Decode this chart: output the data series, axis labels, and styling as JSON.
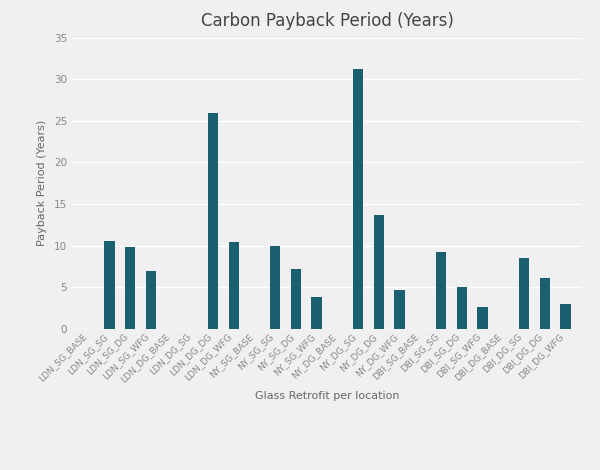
{
  "title": "Carbon Payback Period (Years)",
  "xlabel": "Glass Retrofit per location",
  "ylabel": "Payback Period (Years)",
  "bar_color": "#1b6070",
  "background_color": "#f0f0f0",
  "plot_bg_color": "#f0f0f0",
  "ylim": [
    0,
    35
  ],
  "yticks": [
    0,
    5,
    10,
    15,
    20,
    25,
    30,
    35
  ],
  "categories": [
    "LDN_SG_BASE",
    "LDN_SG_SG",
    "LDN_SG_DG",
    "LDN_SG_WFG",
    "LDN_DG_BASE",
    "LDN_DG_SG",
    "LDN_DG_DG",
    "LDN_DG_WFG",
    "NY_SG_BASE",
    "NY_SG_SG",
    "NY_SG_DG",
    "NY_SG_WFG",
    "NY_DG_BASE",
    "NY_DG_SG",
    "NY_DG_DG",
    "NY_DG_WFG",
    "DBI_SG_BASE",
    "DBI_SG_SG",
    "DBI_SG_DG",
    "DBI_SG_WFG",
    "DBI_DG_BASE",
    "DBI_DG_SG",
    "DBI_DG_DG",
    "DBI_DG_WFG"
  ],
  "values": [
    0,
    10.6,
    9.8,
    7.0,
    0,
    0,
    26.0,
    10.5,
    0,
    10.0,
    7.2,
    3.8,
    0,
    31.2,
    13.7,
    4.7,
    0,
    9.3,
    5.1,
    2.7,
    0,
    8.5,
    6.1,
    3.0
  ],
  "title_fontsize": 12,
  "label_fontsize": 8,
  "tick_fontsize": 6.5
}
